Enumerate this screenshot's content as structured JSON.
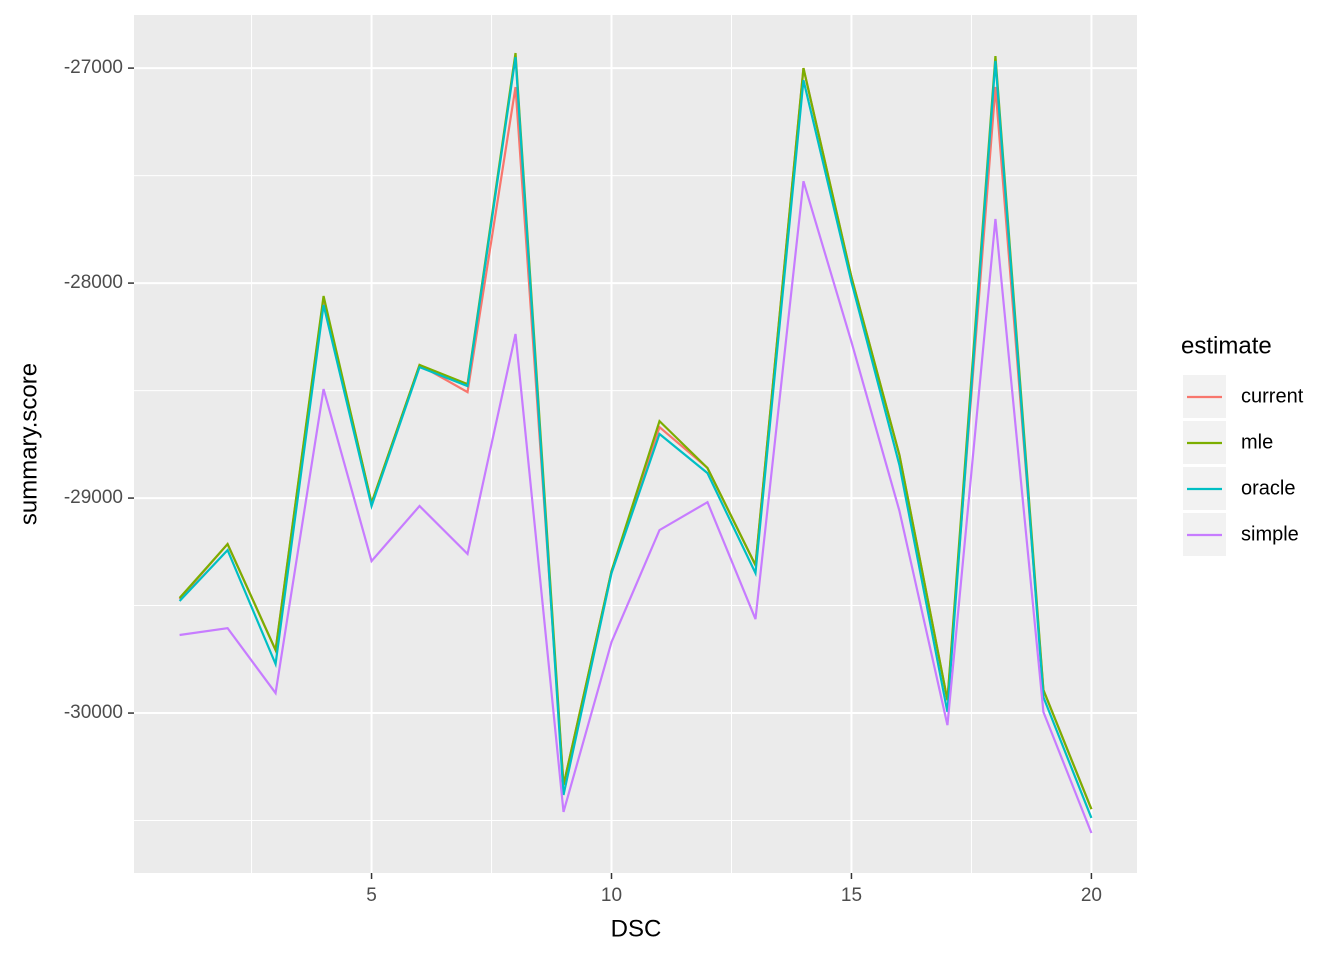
{
  "chart_data": {
    "type": "line",
    "x_label": "DSC",
    "y_label": "summary.score",
    "legend_title": "estimate",
    "legend_position": "right",
    "x": [
      1,
      2,
      3,
      4,
      5,
      6,
      7,
      8,
      9,
      10,
      11,
      12,
      13,
      14,
      15,
      16,
      17,
      18,
      19,
      20
    ],
    "series": [
      {
        "name": "current",
        "color": "#F8766D",
        "values": [
          -29470,
          -29214,
          -29707,
          -28070,
          -29023,
          -28381,
          -28507,
          -27088,
          -30335,
          -29340,
          -28670,
          -28860,
          -29312,
          -27000,
          -27972,
          -28800,
          -29940,
          -27088,
          -29893,
          -30447
        ]
      },
      {
        "name": "mle",
        "color": "#7CAE00",
        "values": [
          -29465,
          -29214,
          -29707,
          -28060,
          -29023,
          -28381,
          -28470,
          -26930,
          -30335,
          -29340,
          -28642,
          -28860,
          -29312,
          -27000,
          -27972,
          -28800,
          -29940,
          -26944,
          -29893,
          -30447
        ]
      },
      {
        "name": "oracle",
        "color": "#00BFC4",
        "values": [
          -29479,
          -29242,
          -29772,
          -28102,
          -29037,
          -28391,
          -28479,
          -26949,
          -30381,
          -29349,
          -28702,
          -28884,
          -29349,
          -27056,
          -27995,
          -28847,
          -29995,
          -26967,
          -29926,
          -30488
        ]
      },
      {
        "name": "simple",
        "color": "#C77CFF",
        "values": [
          -29637,
          -29605,
          -29907,
          -28493,
          -29293,
          -29037,
          -29260,
          -28237,
          -30460,
          -29670,
          -29149,
          -29019,
          -29563,
          -27526,
          -28274,
          -29060,
          -30056,
          -27702,
          -29995,
          -30558
        ]
      }
    ],
    "xlim": [
      0.05,
      20.95
    ],
    "xticks": [
      5,
      10,
      15,
      20
    ],
    "x_minor_ticks": [
      2.5,
      7.5,
      12.5,
      17.5
    ],
    "ylim": [
      -30744,
      -26753
    ],
    "yticks": [
      -30000,
      -29000,
      -28000,
      -27000
    ],
    "y_minor_ticks": [
      -30500,
      -29500,
      -28500,
      -27500
    ],
    "grid": true
  }
}
